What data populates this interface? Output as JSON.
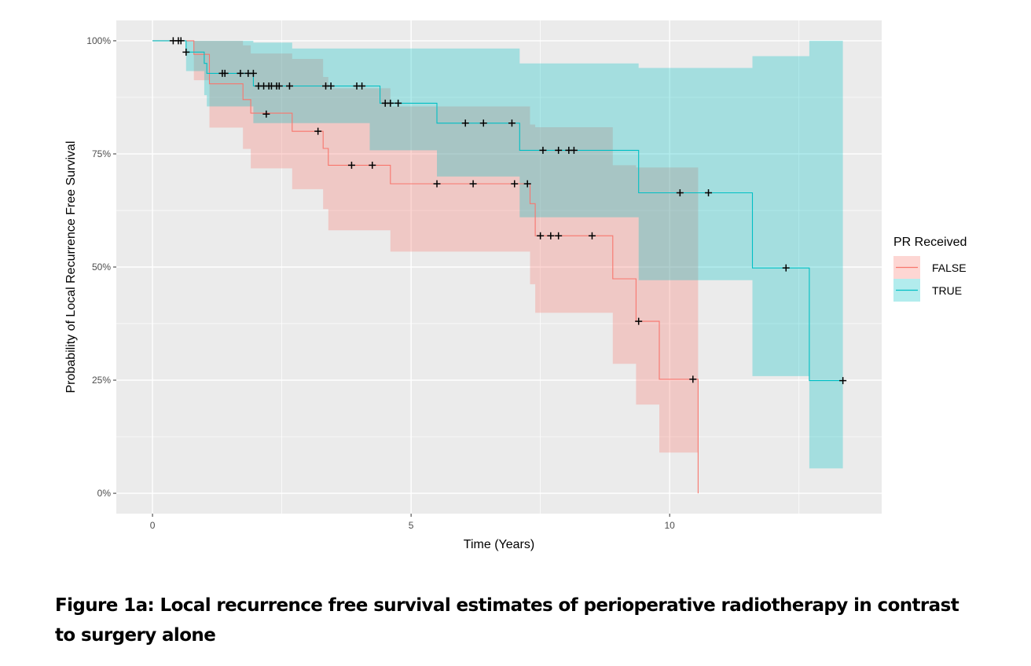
{
  "caption": "Figure 1a:  Local recurrence free survival estimates of perioperative radiotherapy in contrast to surgery alone",
  "chart_data": {
    "type": "line",
    "subtype": "kaplan-meier-step",
    "xlabel": "Time (Years)",
    "ylabel": "Probability of Local Recurrence Free Survival",
    "xlim": [
      -0.7,
      14.1
    ],
    "ylim": [
      -0.045,
      1.045
    ],
    "x_ticks": [
      {
        "value": 0,
        "label": "0"
      },
      {
        "value": 5,
        "label": "5"
      },
      {
        "value": 10,
        "label": "10"
      }
    ],
    "x_minor_ticks": [
      2.5,
      7.5,
      12.5
    ],
    "y_ticks": [
      {
        "value": 0,
        "label": "0%"
      },
      {
        "value": 0.25,
        "label": "25%"
      },
      {
        "value": 0.5,
        "label": "50%"
      },
      {
        "value": 0.75,
        "label": "75%"
      },
      {
        "value": 1,
        "label": "100%"
      }
    ],
    "y_minor_ticks": [
      0.125,
      0.375,
      0.625,
      0.875
    ],
    "grid": true,
    "legend": {
      "title": "PR Received",
      "position": "right"
    },
    "series": [
      {
        "name": "FALSE",
        "color": "#F8766D",
        "steps": [
          [
            0,
            1.0
          ],
          [
            0.8,
            0.97
          ],
          [
            1.1,
            0.905
          ],
          [
            1.75,
            0.87
          ],
          [
            1.9,
            0.84
          ],
          [
            2.7,
            0.8
          ],
          [
            3.3,
            0.762
          ],
          [
            3.4,
            0.725
          ],
          [
            4.6,
            0.684
          ],
          [
            7.3,
            0.64
          ],
          [
            7.4,
            0.569
          ],
          [
            8.9,
            0.474
          ],
          [
            9.35,
            0.38
          ],
          [
            9.8,
            0.252
          ],
          [
            10.55,
            0.0
          ]
        ],
        "end_x": 10.55,
        "ci": [
          [
            0,
            1.0,
            1.0
          ],
          [
            0.8,
            0.913,
            1.0
          ],
          [
            1.1,
            0.808,
            1.0
          ],
          [
            1.75,
            0.761,
            0.99
          ],
          [
            1.9,
            0.718,
            0.972
          ],
          [
            2.7,
            0.672,
            0.96
          ],
          [
            3.3,
            0.628,
            0.92
          ],
          [
            3.4,
            0.581,
            0.895
          ],
          [
            4.6,
            0.534,
            0.855
          ],
          [
            7.3,
            0.462,
            0.815
          ],
          [
            7.4,
            0.399,
            0.809
          ],
          [
            8.9,
            0.286,
            0.725
          ],
          [
            9.35,
            0.196,
            0.72
          ],
          [
            9.8,
            0.09,
            0.72
          ]
        ],
        "ci_end_x": 10.55,
        "censor": [
          [
            1.4,
            0.928
          ],
          [
            2.2,
            0.838
          ],
          [
            3.2,
            0.8
          ],
          [
            3.85,
            0.725
          ],
          [
            4.25,
            0.725
          ],
          [
            5.5,
            0.684
          ],
          [
            6.2,
            0.684
          ],
          [
            7.0,
            0.684
          ],
          [
            7.25,
            0.684
          ],
          [
            7.5,
            0.569
          ],
          [
            7.7,
            0.569
          ],
          [
            7.85,
            0.569
          ],
          [
            8.5,
            0.569
          ],
          [
            9.4,
            0.38
          ],
          [
            10.45,
            0.252
          ]
        ]
      },
      {
        "name": "TRUE",
        "color": "#00BFC4",
        "steps": [
          [
            0,
            1.0
          ],
          [
            0.65,
            0.975
          ],
          [
            1.0,
            0.95
          ],
          [
            1.05,
            0.928
          ],
          [
            1.95,
            0.9
          ],
          [
            4.4,
            0.862
          ],
          [
            5.5,
            0.818
          ],
          [
            7.1,
            0.758
          ],
          [
            9.4,
            0.664
          ],
          [
            11.6,
            0.498
          ],
          [
            12.7,
            0.249
          ]
        ],
        "end_x": 13.35,
        "ci": [
          [
            0,
            1.0,
            1.0
          ],
          [
            0.65,
            0.933,
            1.0
          ],
          [
            1.0,
            0.88,
            1.0
          ],
          [
            1.05,
            0.855,
            1.0
          ],
          [
            1.95,
            0.818,
            0.996
          ],
          [
            2.7,
            0.818,
            0.983
          ],
          [
            3.4,
            0.818,
            0.983
          ],
          [
            4.2,
            0.758,
            0.983
          ],
          [
            5.5,
            0.7,
            0.983
          ],
          [
            7.1,
            0.61,
            0.95
          ],
          [
            9.4,
            0.471,
            0.94
          ],
          [
            11.6,
            0.259,
            0.966
          ],
          [
            12.7,
            0.055,
            1.0
          ]
        ],
        "ci_end_x": 13.35,
        "censor": [
          [
            0.4,
            1.0
          ],
          [
            0.5,
            1.0
          ],
          [
            0.55,
            1.0
          ],
          [
            0.65,
            0.975
          ],
          [
            1.35,
            0.928
          ],
          [
            1.7,
            0.928
          ],
          [
            1.85,
            0.928
          ],
          [
            1.95,
            0.928
          ],
          [
            2.05,
            0.9
          ],
          [
            2.15,
            0.9
          ],
          [
            2.25,
            0.9
          ],
          [
            2.3,
            0.9
          ],
          [
            2.4,
            0.9
          ],
          [
            2.45,
            0.9
          ],
          [
            2.65,
            0.9
          ],
          [
            3.35,
            0.9
          ],
          [
            3.45,
            0.9
          ],
          [
            3.95,
            0.9
          ],
          [
            4.05,
            0.9
          ],
          [
            4.5,
            0.862
          ],
          [
            4.6,
            0.862
          ],
          [
            4.75,
            0.862
          ],
          [
            6.05,
            0.818
          ],
          [
            6.4,
            0.818
          ],
          [
            6.95,
            0.818
          ],
          [
            7.55,
            0.758
          ],
          [
            7.85,
            0.758
          ],
          [
            8.05,
            0.758
          ],
          [
            8.15,
            0.758
          ],
          [
            10.2,
            0.664
          ],
          [
            10.75,
            0.664
          ],
          [
            12.25,
            0.498
          ],
          [
            13.35,
            0.249
          ]
        ]
      }
    ]
  }
}
